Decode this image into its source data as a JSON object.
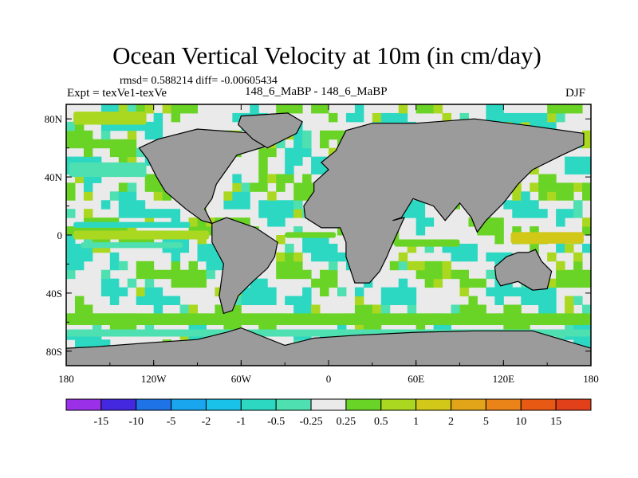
{
  "title": "Ocean Vertical Velocity at 10m (in cm/day)",
  "stats_line": "rmsd= 0.588214 diff= -0.00605434",
  "experiment_label": "Expt = texVe1-texVe",
  "experiment_pair": "148_6_MaBP - 148_6_MaBP",
  "season": "DJF",
  "colors": {
    "land": "#9b9b9b",
    "ocean_neutral": "#eaeaea",
    "frame": "#000000"
  },
  "chart_data": {
    "type": "heatmap",
    "title": "Ocean Vertical Velocity at 10m (in cm/day)",
    "units": "cm/day",
    "x_range": [
      -180,
      180
    ],
    "y_range": [
      -90,
      90
    ],
    "x_ticks": [
      {
        "value": -180,
        "label": "180"
      },
      {
        "value": -120,
        "label": "120W"
      },
      {
        "value": -60,
        "label": "60W"
      },
      {
        "value": 0,
        "label": "0"
      },
      {
        "value": 60,
        "label": "60E"
      },
      {
        "value": 120,
        "label": "120E"
      },
      {
        "value": 180,
        "label": "180"
      }
    ],
    "y_ticks": [
      {
        "value": 80,
        "label": "80N"
      },
      {
        "value": 40,
        "label": "40N"
      },
      {
        "value": 0,
        "label": "0"
      },
      {
        "value": -40,
        "label": "40S"
      },
      {
        "value": -80,
        "label": "80S"
      }
    ],
    "colorbar": {
      "boundaries": [
        "-15",
        "-10",
        "-5",
        "-2",
        "-1",
        "-0.5",
        "-0.25",
        "0.25",
        "0.5",
        "1",
        "2",
        "5",
        "10",
        "15"
      ],
      "colors": [
        "#9a30e8",
        "#4428e0",
        "#1e74e6",
        "#1aa6ee",
        "#18c2e8",
        "#2cd8c2",
        "#4ee0b0",
        "#eaeaea",
        "#6ad426",
        "#aad820",
        "#d2c818",
        "#e2a418",
        "#ea8418",
        "#e85a14",
        "#e2401a"
      ]
    },
    "land_masses": [
      {
        "name": "americas-north",
        "polygon": [
          [
            -117,
            66
          ],
          [
            -90,
            73
          ],
          [
            -50,
            70
          ],
          [
            -40,
            62
          ],
          [
            -63,
            55
          ],
          [
            -70,
            45
          ],
          [
            -77,
            35
          ],
          [
            -80,
            25
          ],
          [
            -85,
            18
          ],
          [
            -80,
            8
          ],
          [
            -87,
            10
          ],
          [
            -98,
            18
          ],
          [
            -105,
            24
          ],
          [
            -112,
            30
          ],
          [
            -118,
            40
          ],
          [
            -124,
            52
          ],
          [
            -130,
            60
          ]
        ]
      },
      {
        "name": "americas-south",
        "polygon": [
          [
            -80,
            8
          ],
          [
            -70,
            12
          ],
          [
            -50,
            5
          ],
          [
            -35,
            -5
          ],
          [
            -37,
            -15
          ],
          [
            -42,
            -23
          ],
          [
            -52,
            -32
          ],
          [
            -62,
            -42
          ],
          [
            -66,
            -52
          ],
          [
            -72,
            -54
          ],
          [
            -75,
            -42
          ],
          [
            -72,
            -20
          ],
          [
            -80,
            -5
          ]
        ]
      },
      {
        "name": "greenland",
        "polygon": [
          [
            -60,
            82
          ],
          [
            -28,
            84
          ],
          [
            -18,
            78
          ],
          [
            -22,
            70
          ],
          [
            -42,
            60
          ],
          [
            -52,
            66
          ],
          [
            -62,
            76
          ]
        ]
      },
      {
        "name": "eurasia-africa",
        "polygon": [
          [
            -10,
            36
          ],
          [
            0,
            45
          ],
          [
            -5,
            50
          ],
          [
            5,
            58
          ],
          [
            12,
            72
          ],
          [
            30,
            77
          ],
          [
            60,
            77
          ],
          [
            100,
            80
          ],
          [
            140,
            75
          ],
          [
            175,
            70
          ],
          [
            175,
            62
          ],
          [
            160,
            55
          ],
          [
            140,
            45
          ],
          [
            130,
            35
          ],
          [
            120,
            22
          ],
          [
            108,
            10
          ],
          [
            102,
            2
          ],
          [
            98,
            12
          ],
          [
            90,
            22
          ],
          [
            80,
            10
          ],
          [
            72,
            20
          ],
          [
            58,
            25
          ],
          [
            50,
            12
          ],
          [
            44,
            10
          ],
          [
            52,
            12
          ],
          [
            42,
            -10
          ],
          [
            40,
            -15
          ],
          [
            35,
            -25
          ],
          [
            28,
            -33
          ],
          [
            18,
            -33
          ],
          [
            12,
            -15
          ],
          [
            12,
            -5
          ],
          [
            8,
            5
          ],
          [
            -5,
            5
          ],
          [
            -16,
            12
          ],
          [
            -17,
            20
          ],
          [
            -10,
            30
          ]
        ]
      },
      {
        "name": "australia",
        "polygon": [
          [
            114,
            -22
          ],
          [
            122,
            -15
          ],
          [
            130,
            -12
          ],
          [
            137,
            -12
          ],
          [
            142,
            -10
          ],
          [
            146,
            -18
          ],
          [
            153,
            -25
          ],
          [
            150,
            -37
          ],
          [
            140,
            -38
          ],
          [
            130,
            -32
          ],
          [
            118,
            -35
          ],
          [
            115,
            -30
          ]
        ]
      },
      {
        "name": "antarctica",
        "polygon": [
          [
            -180,
            -90
          ],
          [
            180,
            -90
          ],
          [
            180,
            -78
          ],
          [
            160,
            -72
          ],
          [
            140,
            -66
          ],
          [
            100,
            -66
          ],
          [
            60,
            -67
          ],
          [
            20,
            -69
          ],
          [
            -10,
            -71
          ],
          [
            -30,
            -76
          ],
          [
            -60,
            -64
          ],
          [
            -70,
            -67
          ],
          [
            -90,
            -72
          ],
          [
            -120,
            -74
          ],
          [
            -160,
            -77
          ],
          [
            -180,
            -78
          ]
        ]
      }
    ],
    "field_features": [
      {
        "name": "equatorial-pacific-upwelling",
        "lon": [
          -175,
          -82
        ],
        "lat": [
          -3,
          3
        ],
        "level": 2
      },
      {
        "name": "equatorial-pacific-downwelling-north",
        "lon": [
          -175,
          -95
        ],
        "lat": [
          5,
          9
        ],
        "level": -2
      },
      {
        "name": "equatorial-pacific-downwelling-south",
        "lon": [
          -170,
          -100
        ],
        "lat": [
          -9,
          -5
        ],
        "level": -1
      },
      {
        "name": "equatorial-atlantic-upwelling",
        "lon": [
          -30,
          5
        ],
        "lat": [
          -2,
          2
        ],
        "level": 1
      },
      {
        "name": "equatorial-indian-upwelling",
        "lon": [
          45,
          90
        ],
        "lat": [
          -8,
          -3
        ],
        "level": 1
      },
      {
        "name": "north-pacific-storm-band",
        "lon": [
          -178,
          -125
        ],
        "lat": [
          40,
          50
        ],
        "level": -1
      },
      {
        "name": "arctic-positive",
        "lon": [
          -175,
          -125
        ],
        "lat": [
          76,
          85
        ],
        "level": 2
      },
      {
        "name": "southern-ocean-band",
        "lon": [
          -180,
          180
        ],
        "lat": [
          -62,
          -54
        ],
        "level": 1
      },
      {
        "name": "southern-ocean-negative",
        "lon": [
          -180,
          180
        ],
        "lat": [
          -70,
          -65
        ],
        "level": -1
      },
      {
        "name": "western-pacific-positive",
        "lon": [
          125,
          175
        ],
        "lat": [
          -6,
          2
        ],
        "level": 3
      }
    ]
  }
}
